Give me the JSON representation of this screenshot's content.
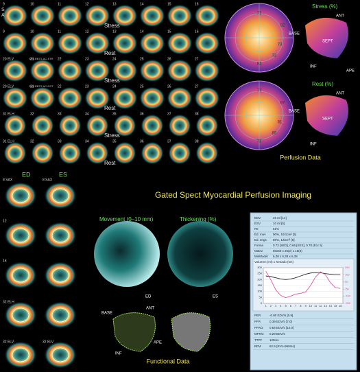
{
  "slices": {
    "rows": [
      {
        "numbers": [
          "9",
          "10",
          "11",
          "12",
          "13",
          "14",
          "15",
          "16"
        ],
        "label": "Stress",
        "orientation": [
          "S",
          "A"
        ]
      },
      {
        "numbers": [
          "9",
          "10",
          "11",
          "12",
          "13",
          "14",
          "15",
          "16"
        ],
        "label": "Rest"
      },
      {
        "numbers": [
          "20 ELV",
          "21",
          "22",
          "23",
          "24",
          "25",
          "26",
          "27"
        ],
        "label": "Stress",
        "tag": "SAV-REST-AC-STR"
      },
      {
        "numbers": [
          "20 ELV",
          "21",
          "22",
          "23",
          "24",
          "25",
          "26",
          "27"
        ],
        "label": "Rest",
        "tag": "SAV-REST-AC-RST"
      },
      {
        "numbers": [
          "31 ELH",
          "32",
          "33",
          "34",
          "35",
          "36",
          "37",
          "38"
        ],
        "label": "Stress"
      },
      {
        "numbers": [
          "31 ELH",
          "32",
          "33",
          "34",
          "35",
          "36",
          "37",
          "38"
        ],
        "label": "Rest"
      }
    ]
  },
  "perfusion": {
    "stress": {
      "title": "Stress (%)",
      "values": [
        "71",
        "82",
        "73",
        "72",
        "84"
      ],
      "base": "BASE",
      "ant": "ANT",
      "sept": "SEPT",
      "inf": "INF",
      "ape": "APE"
    },
    "rest": {
      "title": "Rest (%)",
      "values": [
        "77",
        "87",
        "81",
        "85",
        "73"
      ],
      "base": "BASE",
      "ant": "ANT",
      "sept": "SEPT",
      "inf": "INF"
    },
    "caption": "Perfusion Data"
  },
  "title": "Gated Spect Myocardial Perfusion Imaging",
  "gated": {
    "ed": "ED",
    "es": "ES",
    "labels": [
      "8 SAX",
      "8 SAX",
      "12",
      "16",
      "32 ELH",
      "32 ELV",
      "32 ELV"
    ]
  },
  "functional": {
    "movement": "Movement (0–10 mm)",
    "thickening": "Thickening (%)",
    "ed": "ED",
    "es": "ES",
    "base": "BASE",
    "ant": "ANT",
    "inf": "INF",
    "ape": "APE",
    "caption": "Functional Data"
  },
  "stats": {
    "rows": [
      [
        "EDV",
        "25 ml [14]"
      ],
      [
        "ESV",
        "10 ml [5]"
      ],
      [
        "FE",
        "61%"
      ],
      [
        "Ed. mov",
        "90%, 16/1cm² [5]"
      ],
      [
        "Ed. engs",
        "86%, 13/cm² [5]"
      ],
      [
        "Forma",
        "0.72 [SED], 0.66 [SES], 0.70 [Ecc 5]"
      ],
      [
        "Matriz",
        "60x60 x 25(2) x 16(8)"
      ],
      [
        "MinModel",
        "6,38 x 6,38 x 6,38"
      ]
    ],
    "chart": {
      "title": "Volumen (ml) x Xenado (ms)",
      "categories": [
        "1",
        "2",
        "3",
        "4",
        "5",
        "6",
        "7",
        "8",
        "9",
        "10",
        "11",
        "12",
        "13",
        "14",
        "15",
        "16"
      ],
      "series": [
        {
          "color": "#222222",
          "values": [
            230,
            225,
            215,
            205,
            200,
            205,
            215,
            230,
            245,
            255,
            260,
            258,
            250,
            245,
            240,
            240
          ]
        },
        {
          "color": "#e0559a",
          "axis": "y2",
          "values": [
            200,
            80,
            -60,
            -140,
            -170,
            -150,
            -120,
            -110,
            -90,
            0,
            120,
            190,
            150,
            40,
            -30,
            -40
          ]
        }
      ],
      "ylim": [
        0,
        300
      ],
      "yticks": [
        0,
        50,
        100,
        150,
        200,
        250,
        300
      ],
      "y2lim": [
        -250,
        250
      ],
      "y2ticks": [
        -250,
        -150,
        -50,
        50,
        150,
        250
      ]
    },
    "lower": [
      [
        "PER",
        "-0.90 EDV/s [0.9]"
      ],
      [
        "PFR",
        "0.39 EDV/s [7.0]"
      ],
      [
        "PFR/2",
        "0.64 EDV/s [10.0]"
      ],
      [
        "MFR/3",
        "0.29 EDV/s"
      ],
      [
        "TTPF",
        "129ms"
      ],
      [
        "BFM",
        "62.5 (R-R=960ms)"
      ]
    ]
  }
}
